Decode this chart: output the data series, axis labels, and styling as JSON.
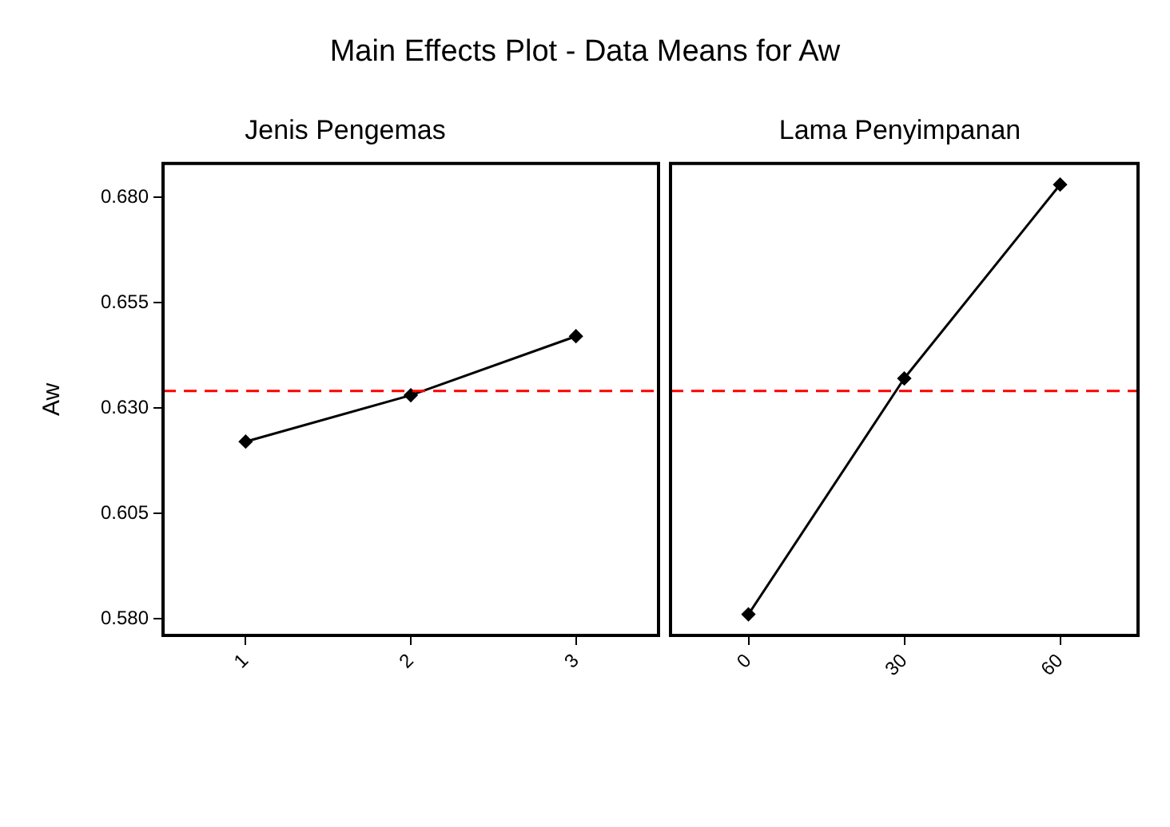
{
  "chart_data": [
    {
      "type": "line",
      "title": "Main Effects Plot - Data Means for Aw",
      "subtitle": "Jenis Pengemas",
      "ylabel": "Aw",
      "categories": [
        "1",
        "2",
        "3"
      ],
      "series": [
        {
          "color": "#000000",
          "values": [
            0.622,
            0.633,
            0.647
          ]
        }
      ],
      "ylim": [
        0.576,
        0.688
      ],
      "yticks": [
        {
          "value": 0.58,
          "label": "0.580"
        },
        0.605,
        {
          "value": 0.63,
          "label": "0.630"
        },
        0.655,
        {
          "value": 0.68,
          "label": "0.680"
        }
      ],
      "ref_lines": [
        {
          "axis": "y",
          "value": 0.634,
          "color": "#ff0000",
          "line_style": "dashed"
        }
      ],
      "marker": "diamond",
      "line_style": "solid",
      "grid": false,
      "legend": false
    },
    {
      "type": "line",
      "subtitle": "Lama Penyimpanan",
      "categories": [
        "0",
        "30",
        "60"
      ],
      "series": [
        {
          "color": "#000000",
          "values": [
            0.581,
            0.637,
            0.683
          ]
        }
      ],
      "ylim": [
        0.576,
        0.688
      ],
      "tick_labels": "x",
      "ref_lines": [
        {
          "axis": "y",
          "value": 0.634,
          "color": "#ff0000",
          "line_style": "dashed"
        }
      ],
      "marker": "diamond",
      "line_style": "solid",
      "grid": false,
      "legend": false
    }
  ]
}
